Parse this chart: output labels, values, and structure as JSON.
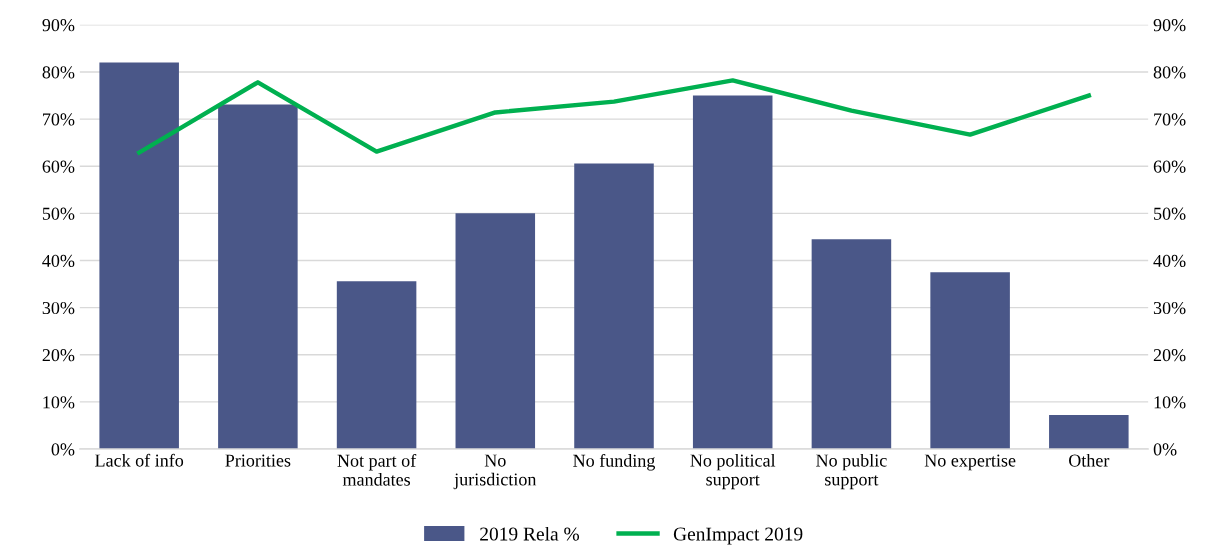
{
  "chart_data": {
    "type": "bar",
    "categories": [
      "Lack of info",
      "Priorities",
      "Not part of\nmandates",
      "No\njurisdiction",
      "No funding",
      "No political\nsupport",
      "No public\nsupport",
      "No expertise",
      "Other"
    ],
    "series": [
      {
        "name": "2019 Rela %",
        "color": "#4a5788",
        "values": [
          82.0,
          73.1,
          35.6,
          50.0,
          60.6,
          75.0,
          44.5,
          37.5,
          7.2
        ]
      },
      {
        "name": "GenImpact 2019",
        "type": "line",
        "axis": "y2",
        "color": "#00b050",
        "values": [
          62.9,
          77.8,
          63.1,
          71.4,
          73.7,
          78.2,
          71.8,
          66.7,
          75.0
        ]
      }
    ],
    "ylim": [
      0,
      90
    ],
    "yticks": [
      {
        "value": 0,
        "label": "0%"
      },
      {
        "value": 10,
        "label": "10%"
      },
      {
        "value": 20,
        "label": "20%"
      },
      {
        "value": 30,
        "label": "30%"
      },
      {
        "value": 40,
        "label": "40%"
      },
      {
        "value": 50,
        "label": "50%"
      },
      {
        "value": 60,
        "label": "60%"
      },
      {
        "value": 70,
        "label": "70%"
      },
      {
        "value": 80,
        "label": "80%"
      },
      {
        "value": 90,
        "label": "90%"
      }
    ],
    "y2lim": [
      0,
      90
    ],
    "y2ticks": [
      {
        "value": 0,
        "label": "0%"
      },
      {
        "value": 10,
        "label": "10%"
      },
      {
        "value": 20,
        "label": "20%"
      },
      {
        "value": 30,
        "label": "30%"
      },
      {
        "value": 40,
        "label": "40%"
      },
      {
        "value": 50,
        "label": "50%"
      },
      {
        "value": 60,
        "label": "60%"
      },
      {
        "value": 70,
        "label": "70%"
      },
      {
        "value": 80,
        "label": "80%"
      },
      {
        "value": 90,
        "label": "90%"
      }
    ],
    "grid": "y",
    "legend": "bottom",
    "marker": "none",
    "line_style": "solid"
  }
}
